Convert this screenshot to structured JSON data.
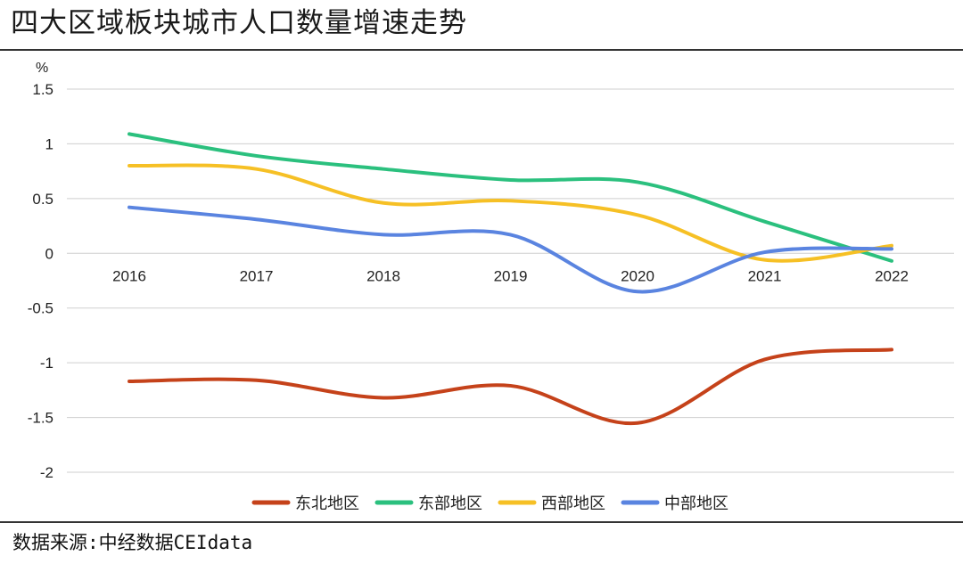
{
  "header": {
    "title": "四大区域板块城市人口数量增速走势"
  },
  "footer": {
    "source": "数据来源:中经数据CEIdata"
  },
  "chart_data": {
    "type": "line",
    "title": "四大区域板块城市人口数量增速走势",
    "ylabel": "%",
    "xlabel": "",
    "x": [
      "2016",
      "2017",
      "2018",
      "2019",
      "2020",
      "2021",
      "2022"
    ],
    "ylim": [
      -2,
      1.5
    ],
    "yticks": [
      "1.5",
      "1",
      "0.5",
      "0",
      "-0.5",
      "-1",
      "-1.5",
      "-2"
    ],
    "grid": true,
    "smooth": true,
    "legend_position": "bottom",
    "series": [
      {
        "name": "东北地区",
        "color": "#c5421a",
        "values": [
          -1.17,
          -1.16,
          -1.32,
          -1.21,
          -1.55,
          -0.97,
          -0.88
        ]
      },
      {
        "name": "东部地区",
        "color": "#2bc07e",
        "values": [
          1.09,
          0.89,
          0.77,
          0.67,
          0.65,
          0.29,
          -0.07
        ]
      },
      {
        "name": "西部地区",
        "color": "#f6c025",
        "values": [
          0.8,
          0.77,
          0.46,
          0.48,
          0.35,
          -0.06,
          0.07
        ]
      },
      {
        "name": "中部地区",
        "color": "#5a84e0",
        "values": [
          0.42,
          0.31,
          0.17,
          0.17,
          -0.35,
          0.01,
          0.04
        ]
      }
    ]
  }
}
